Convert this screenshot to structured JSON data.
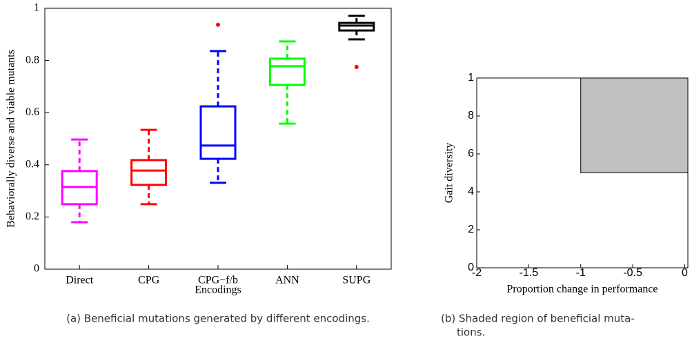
{
  "chart_data": [
    {
      "type": "box",
      "categories": [
        "Direct",
        "CPG",
        "CPG−f/b",
        "ANN",
        "SUPG"
      ],
      "colors": [
        "#ff00ff",
        "#ff0000",
        "#0000ff",
        "#00ff00",
        "#000000"
      ],
      "boxes": [
        {
          "whislo": 0.18,
          "q1": 0.249,
          "med": 0.315,
          "q3": 0.376,
          "whishi": 0.497,
          "fliers": []
        },
        {
          "whislo": 0.249,
          "q1": 0.323,
          "med": 0.378,
          "q3": 0.418,
          "whishi": 0.534,
          "fliers": []
        },
        {
          "whislo": 0.331,
          "q1": 0.423,
          "med": 0.474,
          "q3": 0.624,
          "whishi": 0.836,
          "fliers": [
            0.937
          ]
        },
        {
          "whislo": 0.558,
          "q1": 0.706,
          "med": 0.778,
          "q3": 0.807,
          "whishi": 0.873,
          "fliers": []
        },
        {
          "whislo": 0.881,
          "q1": 0.915,
          "med": 0.934,
          "q3": 0.944,
          "whishi": 0.971,
          "fliers": [
            0.775
          ]
        }
      ],
      "flier_color": "#ff0000",
      "ylim": [
        0,
        1
      ],
      "yticks": [
        0,
        0.2,
        0.4,
        0.6,
        0.8,
        1
      ],
      "ylabel": "Behaviorally diverse and viable mutants",
      "xlabel": "Encodings",
      "caption": [
        "(a) Beneficial mutations generated by different encodings."
      ]
    },
    {
      "type": "region",
      "region": {
        "x": [
          -1,
          0.03
        ],
        "y": [
          5,
          10
        ]
      },
      "color": "#c0c0c0",
      "xlim": [
        -2,
        0.03
      ],
      "xticks": [
        -2,
        -1.5,
        -1,
        -0.5,
        0
      ],
      "ylim": [
        0,
        10
      ],
      "yticks": [
        0,
        2,
        4,
        6,
        8,
        {
          "value": 10,
          "label": "1"
        }
      ],
      "xlabel": "Proportion change in performance",
      "ylabel": "Gait diversity",
      "caption": [
        "(b) Shaded region of beneficial muta-",
        "tions."
      ]
    }
  ]
}
